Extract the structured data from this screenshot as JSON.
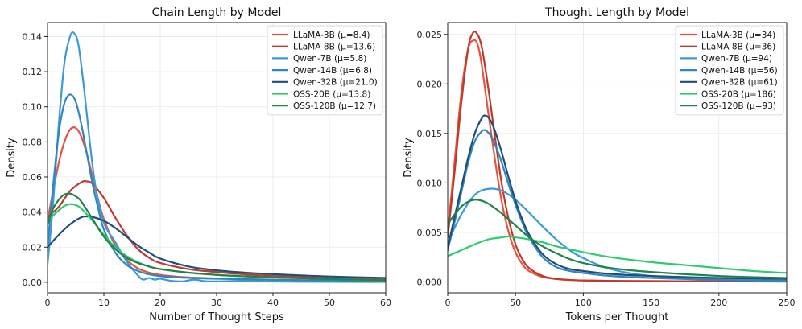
{
  "colors": {
    "LLaMA-3B": "#e8533f",
    "LLaMA-8B": "#c0392b",
    "Qwen-7B": "#3a9ad9",
    "Qwen-14B": "#2e86c1",
    "Qwen-32B": "#1f4e79",
    "OSS-20B": "#2ecc71",
    "OSS-120B": "#1e8449"
  },
  "chart_data": [
    {
      "type": "line",
      "title": "Chain Length by Model",
      "xlabel": "Number of Thought Steps",
      "ylabel": "Density",
      "xlim": [
        0,
        60
      ],
      "ylim": [
        -0.006,
        0.148
      ],
      "xticks": [
        0,
        10,
        20,
        30,
        40,
        50,
        60
      ],
      "xtick_labels": [
        "0",
        "10",
        "20",
        "30",
        "40",
        "50",
        "60"
      ],
      "yticks": [
        0,
        0.02,
        0.04,
        0.06,
        0.08,
        0.1,
        0.12,
        0.14
      ],
      "ytick_labels": [
        "0.00",
        "0.02",
        "0.04",
        "0.06",
        "0.08",
        "0.10",
        "0.12",
        "0.14"
      ],
      "grid": true,
      "legend_position": "top-right",
      "series": [
        {
          "name": "LLaMA-3B",
          "legend": "LLaMA-3B (μ=8.4)",
          "x": [
            0,
            1,
            2,
            3,
            4,
            5,
            6,
            7,
            8,
            9,
            10,
            12,
            14,
            16,
            18,
            20,
            22,
            25,
            30,
            35,
            40,
            50,
            60
          ],
          "values": [
            0.035,
            0.052,
            0.068,
            0.08,
            0.087,
            0.088,
            0.083,
            0.073,
            0.06,
            0.047,
            0.036,
            0.021,
            0.013,
            0.008,
            0.0055,
            0.0042,
            0.0035,
            0.0028,
            0.0022,
            0.0018,
            0.0015,
            0.001,
            0.0008
          ]
        },
        {
          "name": "LLaMA-8B",
          "legend": "LLaMA-8B (μ=13.6)",
          "x": [
            0,
            2,
            4,
            6,
            7,
            8,
            10,
            12,
            14,
            16,
            18,
            20,
            25,
            30,
            35,
            40,
            50,
            60
          ],
          "values": [
            0.037,
            0.043,
            0.052,
            0.057,
            0.0575,
            0.056,
            0.048,
            0.037,
            0.027,
            0.019,
            0.014,
            0.011,
            0.0075,
            0.0058,
            0.0045,
            0.0036,
            0.0024,
            0.0016
          ]
        },
        {
          "name": "Qwen-7B",
          "legend": "Qwen-7B (μ=5.8)",
          "x": [
            0,
            1,
            2,
            3,
            4,
            4.7,
            5.5,
            6.5,
            7.5,
            8.5,
            10,
            12,
            14,
            16,
            17,
            18,
            19,
            20,
            22,
            24,
            26,
            28,
            30,
            35,
            40,
            45,
            50,
            55,
            60
          ],
          "values": [
            0.01,
            0.045,
            0.09,
            0.125,
            0.14,
            0.142,
            0.135,
            0.11,
            0.08,
            0.055,
            0.034,
            0.023,
            0.012,
            0.004,
            0.0015,
            0.0025,
            0.0015,
            0.002,
            0.0008,
            0.0005,
            0.0015,
            0.0006,
            0.0005,
            0.0008,
            0.0004,
            0.0003,
            0.0003,
            0.0002,
            0.0002
          ]
        },
        {
          "name": "Qwen-14B",
          "legend": "Qwen-14B (μ=6.8)",
          "x": [
            0,
            1,
            2,
            3,
            4,
            5,
            6,
            7,
            8,
            9,
            10,
            12,
            14,
            16,
            18,
            20,
            22,
            25,
            30,
            35,
            40,
            50,
            60
          ],
          "values": [
            0.02,
            0.055,
            0.085,
            0.102,
            0.107,
            0.103,
            0.09,
            0.073,
            0.056,
            0.042,
            0.03,
            0.017,
            0.01,
            0.0065,
            0.0045,
            0.0035,
            0.003,
            0.0025,
            0.002,
            0.0017,
            0.0014,
            0.001,
            0.0008
          ]
        },
        {
          "name": "Qwen-32B",
          "legend": "Qwen-32B (μ=21.0)",
          "x": [
            0,
            2,
            4,
            6,
            7,
            8,
            10,
            12,
            14,
            16,
            18,
            20,
            25,
            30,
            35,
            40,
            50,
            60
          ],
          "values": [
            0.02,
            0.027,
            0.033,
            0.037,
            0.0375,
            0.0372,
            0.035,
            0.031,
            0.026,
            0.021,
            0.017,
            0.0135,
            0.009,
            0.0068,
            0.0055,
            0.0046,
            0.0033,
            0.0025
          ]
        },
        {
          "name": "OSS-20B",
          "legend": "OSS-20B (μ=13.8)",
          "x": [
            0,
            2,
            3,
            4,
            5,
            6,
            8,
            10,
            12,
            14,
            16,
            18,
            20,
            25,
            30,
            35,
            40,
            50,
            60
          ],
          "values": [
            0.035,
            0.041,
            0.0435,
            0.0445,
            0.044,
            0.042,
            0.035,
            0.027,
            0.02,
            0.015,
            0.0115,
            0.009,
            0.0075,
            0.0055,
            0.0042,
            0.0034,
            0.0028,
            0.0018,
            0.0012
          ]
        },
        {
          "name": "OSS-120B",
          "legend": "OSS-120B (μ=12.7)",
          "x": [
            0,
            1,
            2,
            3,
            4,
            5,
            6,
            8,
            10,
            12,
            14,
            16,
            18,
            20,
            25,
            30,
            35,
            40,
            50,
            60
          ],
          "values": [
            0.033,
            0.042,
            0.047,
            0.05,
            0.0505,
            0.049,
            0.046,
            0.036,
            0.026,
            0.019,
            0.014,
            0.011,
            0.009,
            0.0075,
            0.0055,
            0.0042,
            0.0034,
            0.0028,
            0.0018,
            0.0012
          ]
        }
      ]
    },
    {
      "type": "line",
      "title": "Thought Length by Model",
      "xlabel": "Tokens per Thought",
      "ylabel": "Density",
      "xlim": [
        0,
        250
      ],
      "ylim": [
        -0.0011,
        0.0262
      ],
      "xticks": [
        0,
        50,
        100,
        150,
        200,
        250
      ],
      "xtick_labels": [
        "0",
        "50",
        "100",
        "150",
        "200",
        "250"
      ],
      "yticks": [
        0,
        0.005,
        0.01,
        0.015,
        0.02,
        0.025
      ],
      "ytick_labels": [
        "0.000",
        "0.005",
        "0.010",
        "0.015",
        "0.020",
        "0.025"
      ],
      "grid": true,
      "legend_position": "top-right",
      "series": [
        {
          "name": "LLaMA-3B",
          "legend": "LLaMA-3B (μ=34)",
          "x": [
            0,
            5,
            10,
            15,
            19,
            22,
            25,
            30,
            35,
            40,
            45,
            50,
            55,
            60,
            70,
            80,
            90,
            100,
            125,
            150,
            200,
            250
          ],
          "values": [
            0.005,
            0.012,
            0.019,
            0.0235,
            0.0244,
            0.024,
            0.022,
            0.017,
            0.0122,
            0.008,
            0.005,
            0.003,
            0.0018,
            0.0011,
            0.0005,
            0.0003,
            0.0002,
            0.00015,
            0.0001,
            8e-05,
            5e-05,
            4e-05
          ]
        },
        {
          "name": "LLaMA-8B",
          "legend": "LLaMA-8B (μ=36)",
          "x": [
            0,
            5,
            10,
            15,
            18,
            21,
            25,
            30,
            35,
            40,
            45,
            50,
            55,
            60,
            70,
            80,
            90,
            100,
            125,
            150,
            200,
            250
          ],
          "values": [
            0.0045,
            0.011,
            0.018,
            0.0235,
            0.025,
            0.0252,
            0.0238,
            0.0195,
            0.0145,
            0.0098,
            0.0063,
            0.0038,
            0.0023,
            0.0014,
            0.0006,
            0.0003,
            0.0002,
            0.00015,
            0.0001,
            8e-05,
            5e-05,
            4e-05
          ]
        },
        {
          "name": "Qwen-7B",
          "legend": "Qwen-7B (μ=94)",
          "x": [
            0,
            10,
            20,
            30,
            40,
            50,
            60,
            70,
            80,
            90,
            100,
            120,
            150,
            200,
            250
          ],
          "values": [
            0.004,
            0.0068,
            0.0088,
            0.0094,
            0.0092,
            0.0083,
            0.007,
            0.0056,
            0.0043,
            0.0032,
            0.0024,
            0.0013,
            0.0006,
            0.00025,
            0.00012
          ]
        },
        {
          "name": "Qwen-14B",
          "legend": "Qwen-14B (μ=56)",
          "x": [
            0,
            5,
            10,
            15,
            20,
            25,
            28,
            32,
            36,
            40,
            45,
            50,
            55,
            60,
            70,
            80,
            90,
            100,
            120,
            150,
            200,
            250
          ],
          "values": [
            0.0032,
            0.006,
            0.009,
            0.012,
            0.0142,
            0.0152,
            0.0153,
            0.0147,
            0.0135,
            0.012,
            0.0098,
            0.0078,
            0.006,
            0.0045,
            0.0025,
            0.0015,
            0.0011,
            0.0009,
            0.0006,
            0.0004,
            0.0002,
            0.0001
          ]
        },
        {
          "name": "Qwen-32B",
          "legend": "Qwen-32B (μ=61)",
          "x": [
            0,
            5,
            10,
            15,
            20,
            25,
            28,
            32,
            36,
            40,
            45,
            50,
            55,
            60,
            70,
            80,
            90,
            100,
            120,
            150,
            200,
            250
          ],
          "values": [
            0.0035,
            0.0065,
            0.0095,
            0.0125,
            0.015,
            0.0165,
            0.0168,
            0.0162,
            0.0148,
            0.013,
            0.0105,
            0.0082,
            0.0063,
            0.0048,
            0.0028,
            0.0018,
            0.0013,
            0.0011,
            0.0008,
            0.0006,
            0.0004,
            0.0003
          ]
        },
        {
          "name": "OSS-20B",
          "legend": "OSS-20B (μ=186)",
          "x": [
            0,
            10,
            20,
            30,
            40,
            45,
            50,
            60,
            70,
            80,
            90,
            100,
            120,
            150,
            175,
            200,
            225,
            250
          ],
          "values": [
            0.0026,
            0.0032,
            0.0038,
            0.0043,
            0.0045,
            0.0046,
            0.0045,
            0.0043,
            0.004,
            0.0036,
            0.0033,
            0.003,
            0.0025,
            0.002,
            0.0017,
            0.0014,
            0.0011,
            0.0009
          ]
        },
        {
          "name": "OSS-120B",
          "legend": "OSS-120B (μ=93)",
          "x": [
            0,
            5,
            10,
            15,
            20,
            25,
            30,
            40,
            50,
            60,
            70,
            80,
            90,
            100,
            120,
            150,
            200,
            250
          ],
          "values": [
            0.0058,
            0.0068,
            0.0076,
            0.0081,
            0.0083,
            0.0082,
            0.0079,
            0.0069,
            0.0057,
            0.0045,
            0.0036,
            0.0029,
            0.0023,
            0.0019,
            0.0014,
            0.001,
            0.0006,
            0.0004
          ]
        }
      ]
    }
  ]
}
